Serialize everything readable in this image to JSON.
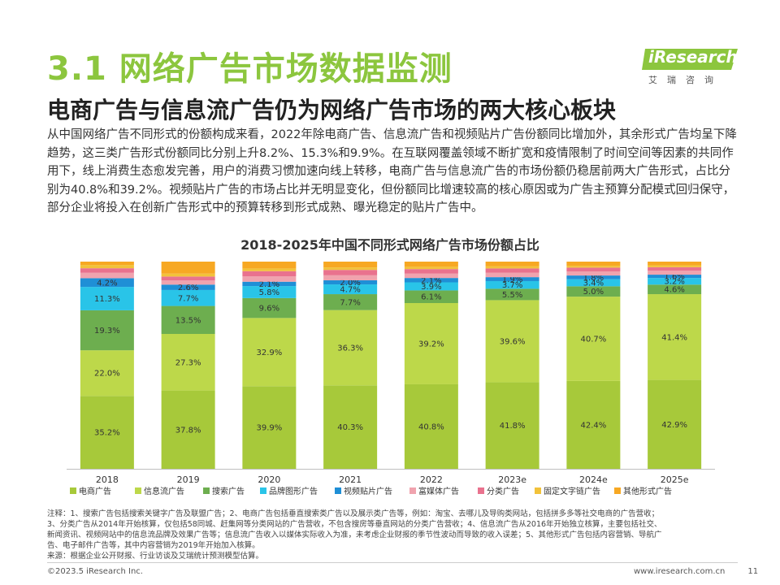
{
  "header": {
    "section_title": "3.1 网络广告市场数据监测",
    "logo_text": "iResearch",
    "logo_sub": "艾瑞咨询",
    "subtitle": "电商广告与信息流广告仍为网络广告市场的两大核心板块"
  },
  "intro_paragraph": "从中国网络广告不同形式的份额构成来看，2022年除电商广告、信息流广告和视频贴片广告份额同比增加外，其余形式广告均呈下降趋势，这三类广告形式份额同比分别上升8.2%、15.3%和9.9%。在互联网覆盖领域不断扩宽和疫情限制了时间空间等因素的共同作用下，线上消费生态愈发完善，用户的消费习惯加速向线上转移，电商广告与信息流广告的市场份额仍稳居前两大广告形式，占比分别为40.8%和39.2%。视频贴片广告的市场占比并无明显变化，但份额同比增速较高的核心原因或为广告主预算分配模式回归保守，部分企业将投入在创新广告形式中的预算转移到形式成熟、曝光稳定的贴片广告中。",
  "chart_data": {
    "type": "bar",
    "stacked": true,
    "normalized": true,
    "title": "2018-2025年中国不同形式网络广告市场份额占比",
    "categories": [
      "2018",
      "2019",
      "2020",
      "2021",
      "2022",
      "2023e",
      "2024e",
      "2025e"
    ],
    "ylim": [
      0,
      100
    ],
    "legend_position": "bottom",
    "series": [
      {
        "name": "电商广告",
        "color": "#A7C93A",
        "values": [
          35.2,
          37.8,
          39.9,
          40.3,
          40.8,
          41.8,
          42.4,
          42.9
        ],
        "labels": [
          "35.2%",
          "37.8%",
          "39.9%",
          "40.3%",
          "40.8%",
          "41.8%",
          "42.4%",
          "42.9%"
        ]
      },
      {
        "name": "信息流广告",
        "color": "#BDD84A",
        "values": [
          22.0,
          27.3,
          32.9,
          36.3,
          39.2,
          39.6,
          40.7,
          41.4
        ],
        "labels": [
          "22.0%",
          "27.3%",
          "32.9%",
          "36.3%",
          "39.2%",
          "39.6%",
          "40.7%",
          "41.4%"
        ]
      },
      {
        "name": "搜索广告",
        "color": "#6DAE4F",
        "values": [
          19.3,
          13.5,
          9.6,
          7.7,
          6.1,
          5.5,
          5.0,
          4.6
        ],
        "labels": [
          "19.3%",
          "13.5%",
          "9.6%",
          "7.7%",
          "6.1%",
          "5.5%",
          "5.0%",
          "4.6%"
        ]
      },
      {
        "name": "品牌图形广告",
        "color": "#29C4E8",
        "values": [
          11.3,
          7.7,
          5.8,
          4.7,
          3.9,
          3.7,
          3.4,
          3.2
        ],
        "labels": [
          "11.3%",
          "7.7%",
          "5.8%",
          "4.7%",
          "3.9%",
          "3.7%",
          "3.4%",
          "3.2%"
        ]
      },
      {
        "name": "视频贴片广告",
        "color": "#1F8FD6",
        "values": [
          4.2,
          2.6,
          2.1,
          2.0,
          2.1,
          1.9,
          1.8,
          1.6
        ],
        "labels": [
          "4.2%",
          "2.6%",
          "2.1%",
          "2.0%",
          "2.1%",
          "1.9%",
          "1.8%",
          "1.6%"
        ]
      },
      {
        "name": "富媒体广告",
        "color": "#F0A3AE",
        "values": [
          2.6,
          2.0,
          2.6,
          2.4,
          2.1,
          2.2,
          2.0,
          1.9
        ],
        "labels": [
          "",
          "",
          "",
          "",
          "",
          "",
          "",
          ""
        ]
      },
      {
        "name": "分类广告",
        "color": "#E9728E",
        "values": [
          2.2,
          1.9,
          2.5,
          2.6,
          2.2,
          2.0,
          1.8,
          1.7
        ],
        "labels": [
          "",
          "",
          "",
          "",
          "",
          "",
          "",
          ""
        ]
      },
      {
        "name": "固定文字链广告",
        "color": "#F2C23A",
        "values": [
          1.6,
          1.4,
          1.3,
          1.2,
          1.1,
          1.0,
          0.9,
          0.9
        ],
        "labels": [
          "",
          "",
          "",
          "",
          "",
          "",
          "",
          ""
        ]
      },
      {
        "name": "其他形式广告",
        "color": "#F7A823",
        "values": [
          1.6,
          5.8,
          3.3,
          2.8,
          2.5,
          2.3,
          2.0,
          1.8
        ],
        "labels": [
          "",
          "",
          "",
          "",
          "",
          "",
          "",
          ""
        ]
      }
    ]
  },
  "notes": {
    "line1": "注释：1、搜索广告包括搜索关键字广告及联盟广告；2、电商广告包括垂直搜索类广告以及展示类广告等，例如：淘宝、去哪儿及导购类网站，包括拼多多等社交电商的广告营收；",
    "line2": "3、分类广告从2014年开始核算，仅包括58同城、赶集网等分类网站的广告营收，不包含搜房等垂直网站的分类广告营收；4、信息流广告从2016年开始独立核算，主要包括社交、",
    "line3": "新闻资讯、视频网站中的信息流品牌及效果广告等；信息流广告收入以媒体实际收入为准，未考虑企业财报的季节性波动而导致的收入误差；5、其他形式广告包括内容营销、导航广",
    "line4": "告、电子邮件广告等，其中内容营销为2019年开始加入核算。",
    "source": "来源：根据企业公开财报、行业访谈及艾瑞统计预测模型估算。"
  },
  "footer": {
    "copyright": "©2023.5 iResearch Inc.",
    "website": "www.iresearch.com.cn",
    "page_number": "11"
  },
  "colors": {
    "accent_green": "#8CC63E"
  }
}
